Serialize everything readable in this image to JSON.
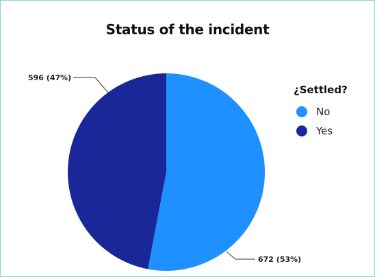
{
  "chart_data": {
    "type": "pie",
    "title": "Status of the incident",
    "legend_title": "¿Settled?",
    "legend_position": "right",
    "slices": [
      {
        "label": "No",
        "value": 672,
        "percent": 53,
        "data_label": "672 (53%)",
        "color": "#1e90ff"
      },
      {
        "label": "Yes",
        "value": 596,
        "percent": 47,
        "data_label": "596 (47%)",
        "color": "#1a2799"
      }
    ]
  }
}
